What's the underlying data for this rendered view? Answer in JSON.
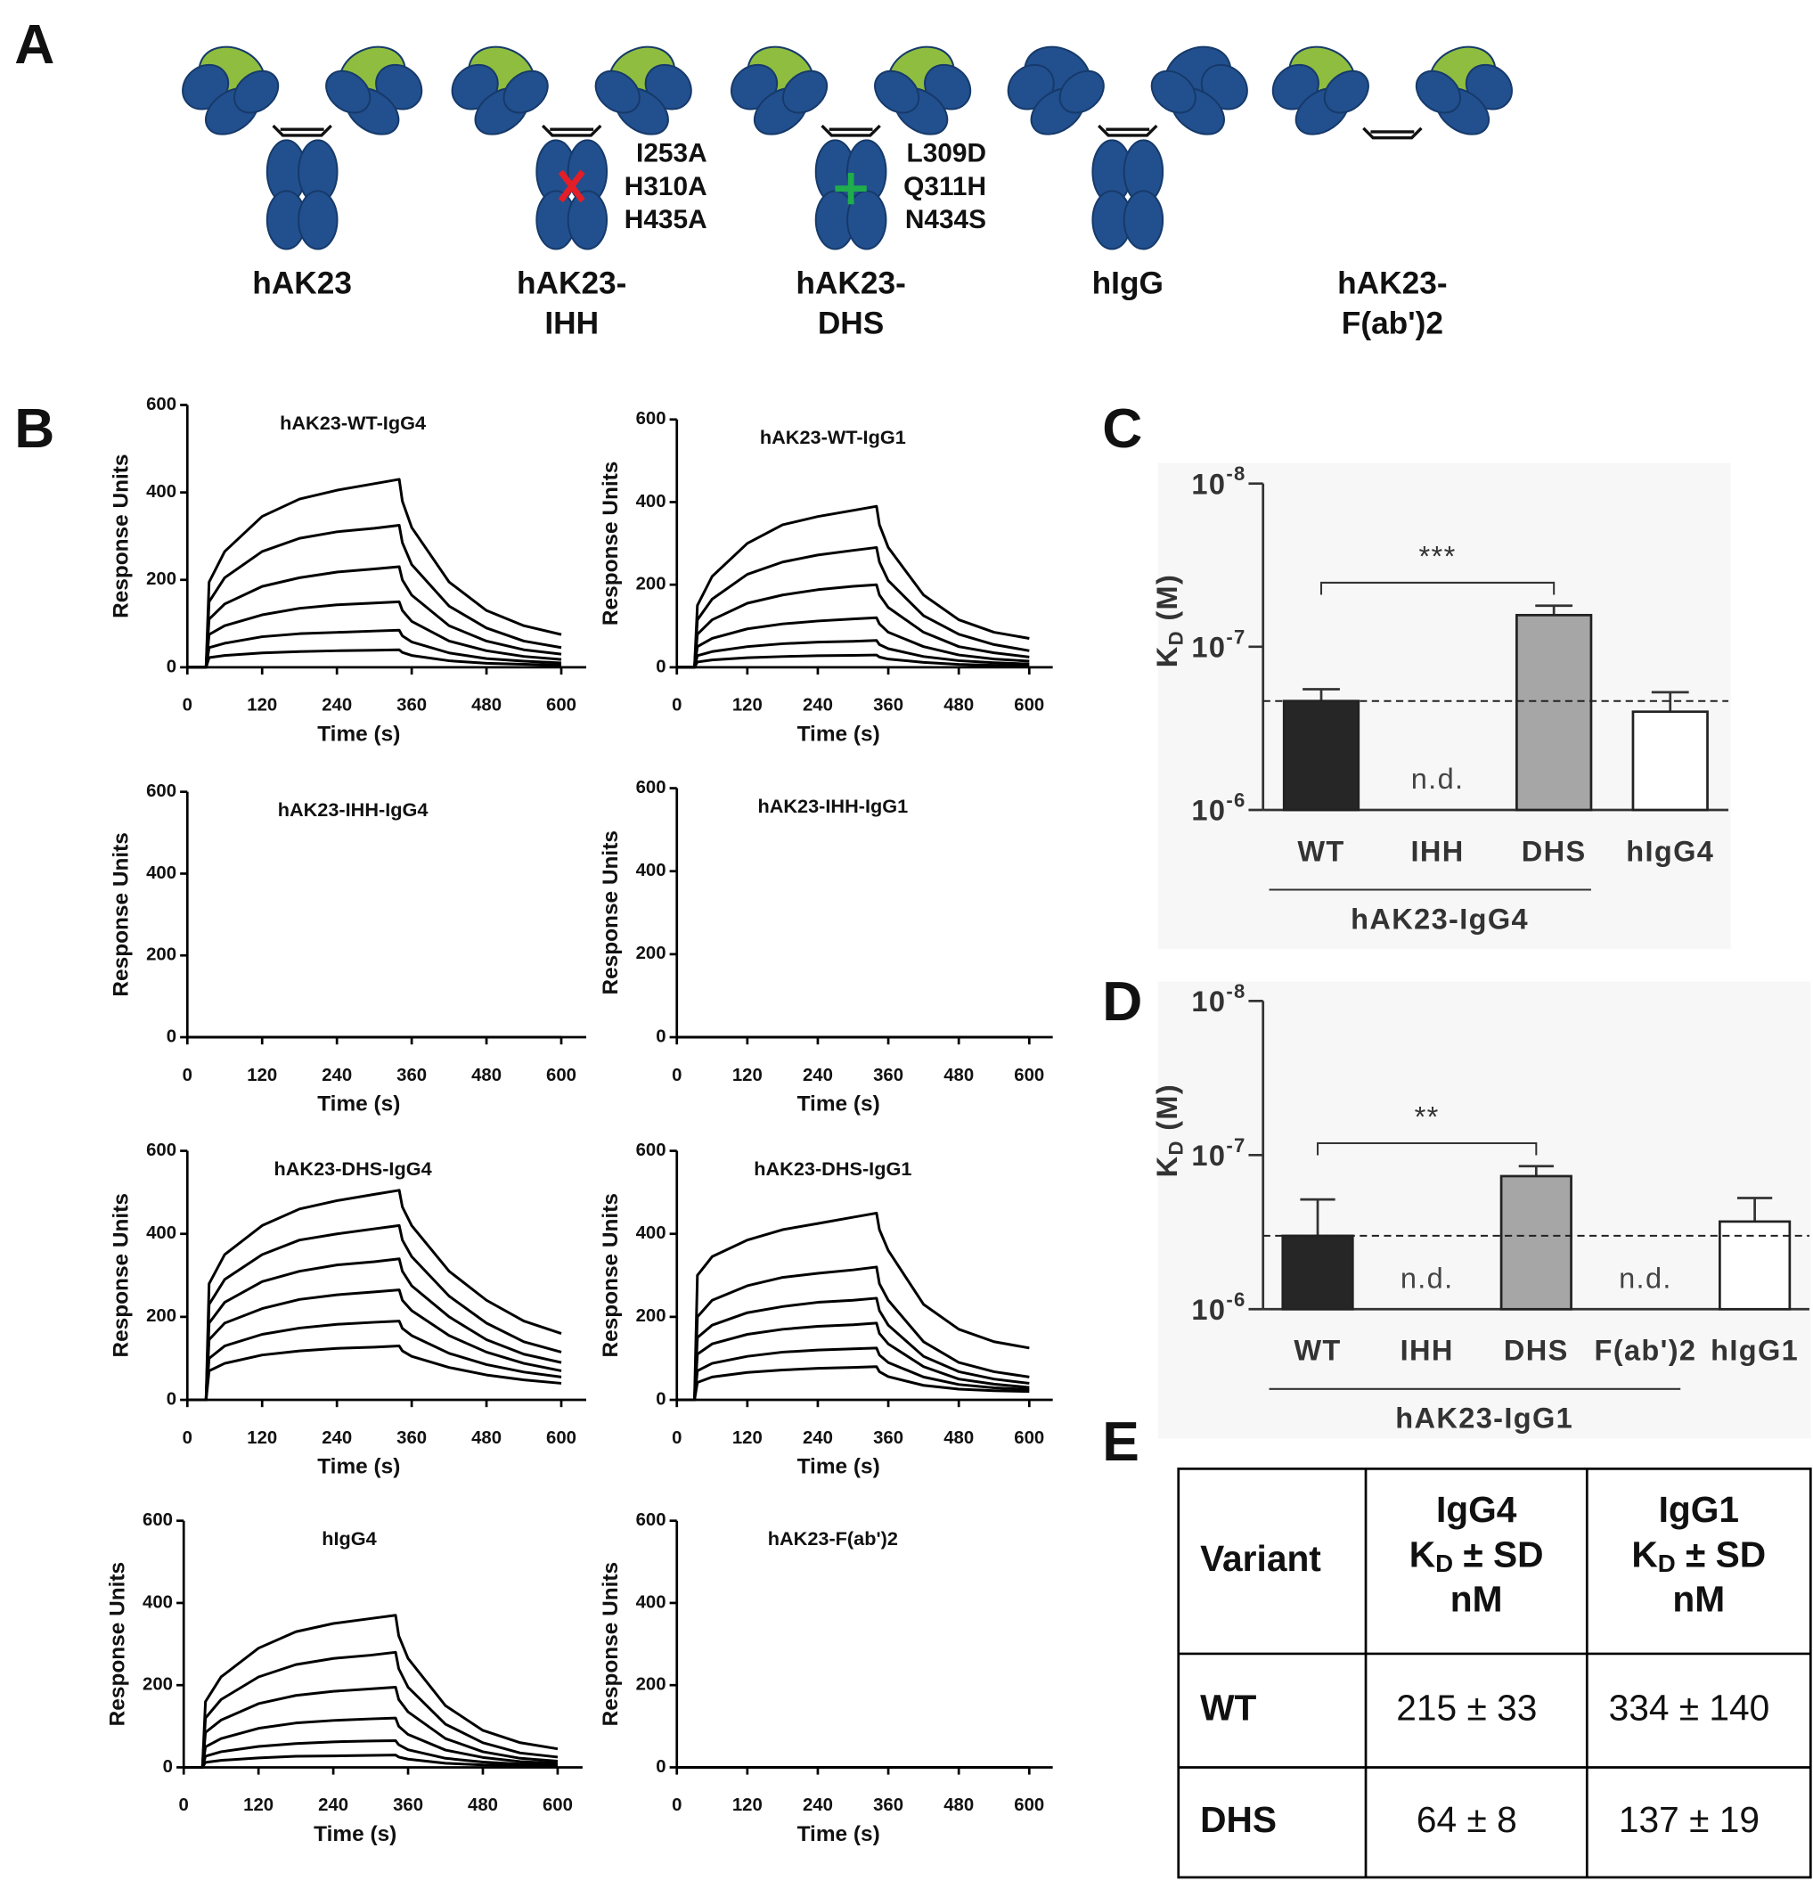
{
  "panel_labels": [
    "A",
    "B",
    "C",
    "D",
    "E"
  ],
  "diagram": {
    "antibodies": [
      {
        "label": [
          "hAK23"
        ]
      },
      {
        "label": [
          "hAK23-",
          "IHH"
        ],
        "mutations": [
          "I253A",
          "H310A",
          "H435A"
        ]
      },
      {
        "label": [
          "hAK23-",
          "DHS"
        ],
        "mutations": [
          "L309D",
          "Q311H",
          "N434S"
        ]
      },
      {
        "label": [
          "hIgG"
        ]
      },
      {
        "label": [
          "hAK23-",
          "F(ab')2"
        ]
      }
    ]
  },
  "chart_data": [
    {
      "type": "line",
      "title": "hAK23-WT-IgG4",
      "x_label": "Time (s)",
      "y_label": "Response Units",
      "xlim": [
        0,
        640
      ],
      "ylim": [
        0,
        600
      ],
      "xticks": [
        0,
        120,
        240,
        360,
        480,
        600
      ],
      "yticks": [
        0,
        200,
        400,
        600
      ],
      "x": [
        0,
        30,
        35,
        60,
        120,
        180,
        240,
        300,
        340,
        345,
        360,
        420,
        480,
        540,
        600
      ],
      "series": [
        {
          "color": "#000000",
          "values": [
            0,
            0,
            195,
            265,
            345,
            385,
            405,
            420,
            430,
            380,
            320,
            195,
            130,
            95,
            75
          ]
        },
        {
          "color": "#000000",
          "values": [
            0,
            0,
            150,
            205,
            265,
            295,
            310,
            318,
            325,
            285,
            235,
            140,
            90,
            60,
            45
          ]
        },
        {
          "color": "#000000",
          "values": [
            0,
            0,
            110,
            145,
            185,
            205,
            218,
            225,
            230,
            200,
            165,
            95,
            60,
            40,
            30
          ]
        },
        {
          "color": "#000000",
          "values": [
            0,
            0,
            75,
            95,
            120,
            135,
            143,
            147,
            150,
            130,
            105,
            60,
            38,
            25,
            18
          ]
        },
        {
          "color": "#000000",
          "values": [
            0,
            0,
            45,
            55,
            70,
            77,
            80,
            83,
            85,
            72,
            58,
            33,
            20,
            14,
            10
          ]
        },
        {
          "color": "#000000",
          "values": [
            0,
            0,
            22,
            27,
            33,
            36,
            38,
            39,
            40,
            34,
            27,
            15,
            9,
            7,
            5
          ]
        }
      ]
    },
    {
      "type": "line",
      "title": "hAK23-WT-IgG1",
      "x_label": "Time (s)",
      "y_label": "Response Units",
      "xlim": [
        0,
        640
      ],
      "ylim": [
        0,
        600
      ],
      "xticks": [
        0,
        120,
        240,
        360,
        480,
        600
      ],
      "yticks": [
        0,
        200,
        400,
        600
      ],
      "x": [
        0,
        30,
        35,
        60,
        120,
        180,
        240,
        300,
        340,
        345,
        360,
        420,
        480,
        540,
        600
      ],
      "series": [
        {
          "color": "#000000",
          "values": [
            0,
            0,
            150,
            220,
            300,
            345,
            365,
            380,
            390,
            345,
            290,
            175,
            115,
            85,
            70
          ]
        },
        {
          "color": "#000000",
          "values": [
            0,
            0,
            115,
            165,
            225,
            255,
            272,
            283,
            290,
            255,
            210,
            125,
            80,
            55,
            40
          ]
        },
        {
          "color": "#000000",
          "values": [
            0,
            0,
            80,
            115,
            155,
            175,
            188,
            196,
            200,
            175,
            145,
            85,
            50,
            35,
            25
          ]
        },
        {
          "color": "#000000",
          "values": [
            0,
            0,
            50,
            70,
            93,
            105,
            112,
            117,
            120,
            105,
            85,
            50,
            30,
            20,
            15
          ]
        },
        {
          "color": "#000000",
          "values": [
            0,
            0,
            28,
            38,
            50,
            57,
            61,
            63,
            65,
            55,
            45,
            26,
            16,
            11,
            8
          ]
        },
        {
          "color": "#000000",
          "values": [
            0,
            0,
            13,
            18,
            23,
            26,
            28,
            29,
            30,
            25,
            20,
            12,
            7,
            5,
            3
          ]
        }
      ]
    },
    {
      "type": "line",
      "title": "hAK23-IHH-IgG4",
      "x_label": "Time (s)",
      "y_label": "Response Units",
      "xlim": [
        0,
        640
      ],
      "ylim": [
        0,
        600
      ],
      "xticks": [
        0,
        120,
        240,
        360,
        480,
        600
      ],
      "yticks": [
        0,
        200,
        400,
        600
      ],
      "x": [
        0,
        600
      ],
      "series": [
        {
          "color": "#000000",
          "values": [
            0,
            0
          ]
        }
      ]
    },
    {
      "type": "line",
      "title": "hAK23-IHH-IgG1",
      "x_label": "Time (s)",
      "y_label": "Response Units",
      "xlim": [
        0,
        640
      ],
      "ylim": [
        0,
        600
      ],
      "xticks": [
        0,
        120,
        240,
        360,
        480,
        600
      ],
      "yticks": [
        0,
        200,
        400,
        600
      ],
      "x": [
        0,
        600
      ],
      "series": [
        {
          "color": "#000000",
          "values": [
            0,
            0
          ]
        }
      ]
    },
    {
      "type": "line",
      "title": "hAK23-DHS-IgG4",
      "x_label": "Time (s)",
      "y_label": "Response Units",
      "xlim": [
        0,
        640
      ],
      "ylim": [
        0,
        600
      ],
      "xticks": [
        0,
        120,
        240,
        360,
        480,
        600
      ],
      "yticks": [
        0,
        200,
        400,
        600
      ],
      "x": [
        0,
        30,
        35,
        60,
        120,
        180,
        240,
        300,
        340,
        345,
        360,
        420,
        480,
        540,
        600
      ],
      "series": [
        {
          "color": "#000000",
          "values": [
            0,
            0,
            280,
            350,
            420,
            460,
            480,
            495,
            505,
            465,
            420,
            310,
            240,
            190,
            160
          ]
        },
        {
          "color": "#000000",
          "values": [
            0,
            0,
            230,
            290,
            350,
            385,
            400,
            412,
            420,
            385,
            345,
            250,
            185,
            140,
            115
          ]
        },
        {
          "color": "#000000",
          "values": [
            0,
            0,
            185,
            235,
            285,
            310,
            325,
            333,
            340,
            310,
            275,
            200,
            145,
            110,
            90
          ]
        },
        {
          "color": "#000000",
          "values": [
            0,
            0,
            145,
            185,
            220,
            242,
            253,
            260,
            265,
            240,
            215,
            155,
            115,
            88,
            70
          ]
        },
        {
          "color": "#000000",
          "values": [
            0,
            0,
            100,
            130,
            158,
            173,
            182,
            187,
            190,
            172,
            155,
            112,
            85,
            67,
            55
          ]
        },
        {
          "color": "#000000",
          "values": [
            0,
            0,
            70,
            88,
            108,
            118,
            124,
            127,
            130,
            118,
            105,
            78,
            60,
            48,
            40
          ]
        }
      ]
    },
    {
      "type": "line",
      "title": "hAK23-DHS-IgG1",
      "x_label": "Time (s)",
      "y_label": "Response Units",
      "xlim": [
        0,
        640
      ],
      "ylim": [
        0,
        600
      ],
      "xticks": [
        0,
        120,
        240,
        360,
        480,
        600
      ],
      "yticks": [
        0,
        200,
        400,
        600
      ],
      "x": [
        0,
        30,
        35,
        60,
        120,
        180,
        240,
        300,
        340,
        345,
        360,
        420,
        480,
        540,
        600
      ],
      "series": [
        {
          "color": "#000000",
          "values": [
            0,
            0,
            300,
            345,
            385,
            410,
            425,
            440,
            450,
            410,
            360,
            230,
            170,
            140,
            125
          ]
        },
        {
          "color": "#000000",
          "values": [
            0,
            0,
            200,
            240,
            275,
            295,
            305,
            313,
            320,
            280,
            240,
            140,
            90,
            68,
            55
          ]
        },
        {
          "color": "#000000",
          "values": [
            0,
            0,
            150,
            180,
            210,
            225,
            235,
            240,
            245,
            215,
            180,
            105,
            68,
            50,
            40
          ]
        },
        {
          "color": "#000000",
          "values": [
            0,
            0,
            110,
            135,
            158,
            170,
            177,
            181,
            185,
            160,
            135,
            80,
            50,
            38,
            30
          ]
        },
        {
          "color": "#000000",
          "values": [
            0,
            0,
            70,
            88,
            105,
            115,
            120,
            123,
            125,
            108,
            90,
            55,
            37,
            29,
            25
          ]
        },
        {
          "color": "#000000",
          "values": [
            0,
            0,
            42,
            55,
            66,
            72,
            76,
            78,
            80,
            68,
            56,
            35,
            26,
            22,
            20
          ]
        }
      ]
    },
    {
      "type": "line",
      "title": "hIgG4",
      "x_label": "Time (s)",
      "y_label": "Response Units",
      "xlim": [
        0,
        640
      ],
      "ylim": [
        0,
        600
      ],
      "xticks": [
        0,
        120,
        240,
        360,
        480,
        600
      ],
      "yticks": [
        0,
        200,
        400,
        600
      ],
      "x": [
        0,
        30,
        35,
        60,
        120,
        180,
        240,
        300,
        340,
        345,
        360,
        420,
        480,
        540,
        600
      ],
      "series": [
        {
          "color": "#000000",
          "values": [
            0,
            0,
            160,
            220,
            290,
            330,
            350,
            362,
            370,
            320,
            265,
            150,
            90,
            60,
            45
          ]
        },
        {
          "color": "#000000",
          "values": [
            0,
            0,
            120,
            165,
            220,
            250,
            265,
            273,
            280,
            240,
            195,
            105,
            60,
            35,
            25
          ]
        },
        {
          "color": "#000000",
          "values": [
            0,
            0,
            85,
            115,
            155,
            175,
            185,
            191,
            195,
            165,
            135,
            70,
            38,
            22,
            15
          ]
        },
        {
          "color": "#000000",
          "values": [
            0,
            0,
            50,
            70,
            95,
            108,
            114,
            118,
            120,
            100,
            80,
            42,
            24,
            14,
            10
          ]
        },
        {
          "color": "#000000",
          "values": [
            0,
            0,
            27,
            38,
            51,
            58,
            62,
            64,
            65,
            55,
            43,
            22,
            13,
            8,
            6
          ]
        },
        {
          "color": "#000000",
          "values": [
            0,
            0,
            12,
            17,
            23,
            27,
            28,
            29,
            30,
            25,
            20,
            10,
            6,
            4,
            3
          ]
        }
      ]
    },
    {
      "type": "line",
      "title": "hAK23-F(ab')2",
      "x_label": "Time (s)",
      "y_label": "Response Units",
      "xlim": [
        0,
        640
      ],
      "ylim": [
        0,
        600
      ],
      "xticks": [
        0,
        120,
        240,
        360,
        480,
        600
      ],
      "yticks": [
        0,
        200,
        400,
        600
      ],
      "x": [
        0,
        600
      ],
      "series": [
        {
          "color": "#000000",
          "values": [
            0,
            0
          ]
        }
      ]
    },
    {
      "type": "bar",
      "y_label": "KD (M)",
      "log_scale": true,
      "ylim": [
        1e-06,
        1e-08
      ],
      "yticks": [
        {
          "value": 1e-08,
          "label": "10-8"
        },
        {
          "value": 1e-07,
          "label": "10-7"
        },
        {
          "value": 1e-06,
          "label": "10-6"
        }
      ],
      "categories": [
        "WT",
        "IHH",
        "DHS",
        "hIgG4"
      ],
      "values": [
        2.15e-07,
        null,
        6.4e-08,
        2.5e-07
      ],
      "errors": [
        3.3e-08,
        null,
        8e-09,
        6e-08
      ],
      "value_labels": [
        null,
        "n.d.",
        null,
        null
      ],
      "colors": [
        "#262626",
        "#ffffff",
        "#a6a6a6",
        "#ffffff"
      ],
      "ref_line": 2.15e-07,
      "significance": {
        "text": "***",
        "categories": [
          "WT",
          "DHS"
        ]
      },
      "group": {
        "label": "hAK23-IgG4",
        "categories": [
          "WT",
          "IHH",
          "DHS"
        ]
      }
    },
    {
      "type": "bar",
      "y_label": "KD (M)",
      "log_scale": true,
      "ylim": [
        1e-06,
        1e-08
      ],
      "yticks": [
        {
          "value": 1e-08,
          "label": "10-8"
        },
        {
          "value": 1e-07,
          "label": "10-7"
        },
        {
          "value": 1e-06,
          "label": "10-6"
        }
      ],
      "categories": [
        "WT",
        "IHH",
        "DHS",
        "F(ab')2",
        "hIgG1"
      ],
      "values": [
        3.34e-07,
        null,
        1.37e-07,
        null,
        2.7e-07
      ],
      "errors": [
        1.4e-07,
        null,
        1.9e-08,
        null,
        8e-08
      ],
      "value_labels": [
        null,
        "n.d.",
        null,
        "n.d.",
        null
      ],
      "colors": [
        "#262626",
        "#ffffff",
        "#a6a6a6",
        "#ffffff",
        "#ffffff"
      ],
      "ref_line": 3.34e-07,
      "significance": {
        "text": "**",
        "categories": [
          "WT",
          "DHS"
        ]
      },
      "group": {
        "label": "hAK23-IgG1",
        "categories": [
          "WT",
          "IHH",
          "DHS",
          "F(ab')2"
        ]
      }
    }
  ],
  "table": {
    "header": [
      "Variant",
      [
        "IgG4",
        "KD ± SD",
        "nM"
      ],
      [
        "IgG1",
        "KD ± SD",
        "nM"
      ]
    ],
    "rows": [
      [
        "WT",
        "215 ± 33",
        "334 ± 140"
      ],
      [
        "DHS",
        "64 ± 8",
        "137 ± 19"
      ]
    ]
  }
}
